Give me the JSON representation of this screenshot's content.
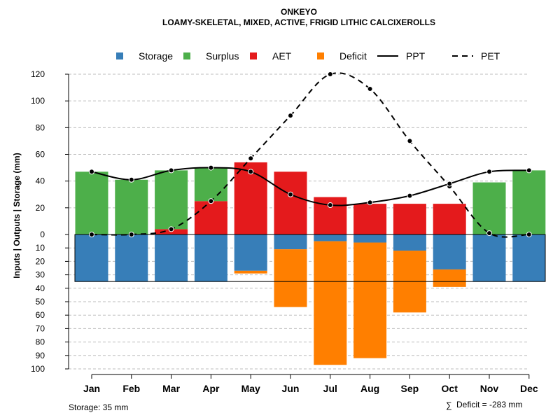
{
  "chart_data": {
    "type": "bar",
    "title": "ONKEYO",
    "subtitle": "LOAMY-SKELETAL, MIXED, ACTIVE, FRIGID LITHIC CALCIXEROLLS",
    "ylabel": "Inputs | Outputs | Storage    (mm)",
    "categories": [
      "Jan",
      "Feb",
      "Mar",
      "Apr",
      "May",
      "Jun",
      "Jul",
      "Aug",
      "Sep",
      "Oct",
      "Nov",
      "Dec"
    ],
    "upper_ylim": [
      0,
      120
    ],
    "upper_ticks": [
      "0",
      "20",
      "40",
      "60",
      "80",
      "100",
      "120"
    ],
    "lower_ylim": [
      0,
      100
    ],
    "lower_ticks": [
      "0",
      "10",
      "20",
      "30",
      "40",
      "50",
      "60",
      "70",
      "80",
      "90",
      "100"
    ],
    "legend": [
      {
        "label": "Storage",
        "kind": "box",
        "color": "#377EB8"
      },
      {
        "label": "Surplus",
        "kind": "box",
        "color": "#4DAF4A"
      },
      {
        "label": "AET",
        "kind": "box",
        "color": "#E41A1C"
      },
      {
        "label": "Deficit",
        "kind": "box",
        "color": "#FF7F00"
      },
      {
        "label": "PPT",
        "kind": "solid",
        "color": "#000000"
      },
      {
        "label": "PET",
        "kind": "dashed",
        "color": "#000000"
      }
    ],
    "series": [
      {
        "name": "AET",
        "panel": "upper",
        "color": "#E41A1C",
        "values": [
          0,
          0,
          4,
          25,
          54,
          47,
          28,
          23,
          23,
          23,
          0,
          0
        ]
      },
      {
        "name": "Surplus",
        "panel": "upper",
        "color": "#4DAF4A",
        "values": [
          47,
          41,
          44,
          25,
          0,
          0,
          0,
          0,
          0,
          0,
          39,
          48
        ]
      },
      {
        "name": "Storage",
        "panel": "lower",
        "color": "#377EB8",
        "values": [
          35,
          35,
          35,
          35,
          27,
          11,
          5,
          6,
          12,
          26,
          35,
          35
        ]
      },
      {
        "name": "Deficit",
        "panel": "lower",
        "color": "#FF7F00",
        "values": [
          0,
          0,
          0,
          0,
          2,
          43,
          92,
          86,
          46,
          13,
          0,
          0
        ]
      },
      {
        "name": "PPT",
        "panel": "upper",
        "style": "solid",
        "color": "#000000",
        "values": [
          47,
          41,
          48,
          50,
          47,
          30,
          22,
          24,
          29,
          38,
          47,
          48
        ]
      },
      {
        "name": "PET",
        "panel": "upper",
        "style": "dashed",
        "color": "#000000",
        "values": [
          0,
          0,
          4,
          25,
          57,
          89,
          120,
          109,
          70,
          36,
          1,
          0
        ]
      }
    ],
    "storage_capacity": 35,
    "storage_note": "Storage: 35 mm",
    "deficit_symbol": "∑",
    "deficit_note": "Deficit = -283 mm"
  }
}
